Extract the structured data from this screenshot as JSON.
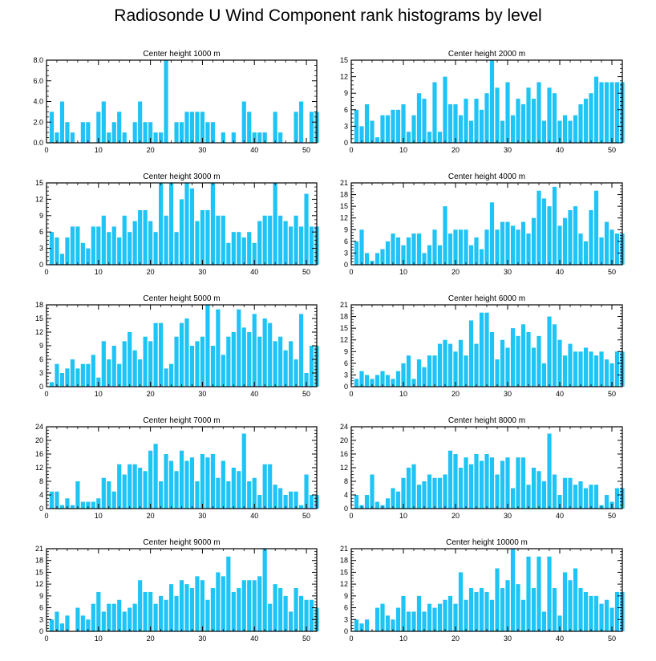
{
  "title": "Radiosonde U Wind Component rank histograms by level",
  "bar_color": "#1ec4f5",
  "chart_data": [
    {
      "type": "bar",
      "title": "Center height 1000 m",
      "xlim": [
        0,
        52
      ],
      "ylim": [
        0,
        8
      ],
      "yticks": [
        0,
        2,
        4,
        6,
        8
      ],
      "ytick_labels": [
        "0.0",
        "2.0",
        "4.0",
        "6.0",
        "8.0"
      ],
      "xticks": [
        0,
        10,
        20,
        30,
        40,
        50
      ],
      "values": [
        0,
        3,
        1,
        4,
        2,
        1,
        0,
        2,
        2,
        0,
        3,
        4,
        1,
        2,
        3,
        1,
        0,
        2,
        4,
        2,
        2,
        1,
        1,
        8,
        0,
        2,
        2,
        3,
        3,
        3,
        3,
        2,
        2,
        0,
        1,
        0,
        1,
        0,
        4,
        3,
        1,
        1,
        1,
        0,
        3,
        1,
        0,
        0,
        3,
        4,
        0,
        3,
        3
      ]
    },
    {
      "type": "bar",
      "title": "Center height 2000 m",
      "xlim": [
        0,
        52
      ],
      "ylim": [
        0,
        15
      ],
      "yticks": [
        0,
        3,
        6,
        9,
        12,
        15
      ],
      "ytick_labels": [
        "0",
        "3",
        "6",
        "9",
        "12",
        "15"
      ],
      "xticks": [
        0,
        10,
        20,
        30,
        40,
        50
      ],
      "values": [
        0,
        6,
        3,
        7,
        4,
        1,
        5,
        5,
        6,
        6,
        7,
        2,
        5,
        9,
        8,
        2,
        11,
        2,
        12,
        7,
        7,
        5,
        8,
        4,
        8,
        6,
        9,
        15,
        10,
        4,
        11,
        5,
        8,
        7,
        10,
        8,
        11,
        4,
        10,
        9,
        4,
        5,
        4,
        5,
        7,
        8,
        9,
        12,
        11,
        11,
        11,
        11,
        11
      ]
    },
    {
      "type": "bar",
      "title": "Center height 3000 m",
      "xlim": [
        0,
        52
      ],
      "ylim": [
        0,
        15
      ],
      "yticks": [
        0,
        3,
        6,
        9,
        12,
        15
      ],
      "ytick_labels": [
        "0",
        "3",
        "6",
        "9",
        "12",
        "15"
      ],
      "xticks": [
        0,
        10,
        20,
        30,
        40,
        50
      ],
      "values": [
        0,
        6,
        5,
        2,
        5,
        7,
        7,
        4,
        3,
        7,
        7,
        9,
        6,
        7,
        5,
        9,
        6,
        8,
        10,
        10,
        8,
        6,
        15,
        9,
        15,
        6,
        12,
        15,
        14,
        8,
        10,
        10,
        15,
        9,
        9,
        4,
        6,
        6,
        5,
        6,
        4,
        8,
        9,
        9,
        15,
        9,
        8,
        7,
        9,
        7,
        13,
        7,
        7
      ]
    },
    {
      "type": "bar",
      "title": "Center height 4000 m",
      "xlim": [
        0,
        52
      ],
      "ylim": [
        0,
        21
      ],
      "yticks": [
        0,
        3,
        6,
        9,
        12,
        15,
        18,
        21
      ],
      "ytick_labels": [
        "0",
        "3",
        "6",
        "9",
        "12",
        "15",
        "18",
        "21"
      ],
      "xticks": [
        0,
        10,
        20,
        30,
        40,
        50
      ],
      "values": [
        0,
        6,
        9,
        3,
        1,
        3,
        4,
        6,
        8,
        7,
        5,
        7,
        8,
        8,
        3,
        5,
        9,
        5,
        15,
        8,
        9,
        9,
        9,
        5,
        7,
        4,
        9,
        16,
        9,
        11,
        11,
        10,
        9,
        11,
        8,
        12,
        19,
        17,
        15,
        20,
        10,
        12,
        14,
        15,
        8,
        6,
        14,
        19,
        7,
        11,
        9,
        8,
        8
      ]
    },
    {
      "type": "bar",
      "title": "Center height 5000 m",
      "xlim": [
        0,
        52
      ],
      "ylim": [
        0,
        18
      ],
      "yticks": [
        0,
        3,
        6,
        9,
        12,
        15,
        18
      ],
      "ytick_labels": [
        "0",
        "3",
        "6",
        "9",
        "12",
        "15",
        "18"
      ],
      "xticks": [
        0,
        10,
        20,
        30,
        40,
        50
      ],
      "values": [
        0,
        1,
        5,
        3,
        4,
        6,
        4,
        5,
        5,
        7,
        2,
        10,
        6,
        9,
        5,
        10,
        12,
        8,
        6,
        11,
        10,
        14,
        14,
        4,
        5,
        11,
        14,
        15,
        9,
        10,
        11,
        18,
        9,
        17,
        7,
        11,
        12,
        17,
        13,
        12,
        16,
        11,
        15,
        14,
        10,
        11,
        8,
        10,
        6,
        16,
        3,
        9,
        9
      ]
    },
    {
      "type": "bar",
      "title": "Center height 6000 m",
      "xlim": [
        0,
        52
      ],
      "ylim": [
        0,
        21
      ],
      "yticks": [
        0,
        3,
        6,
        9,
        12,
        15,
        18,
        21
      ],
      "ytick_labels": [
        "0",
        "3",
        "6",
        "9",
        "12",
        "15",
        "18",
        "21"
      ],
      "xticks": [
        0,
        10,
        20,
        30,
        40,
        50
      ],
      "values": [
        0,
        2,
        4,
        3,
        2,
        3,
        4,
        3,
        2,
        4,
        6,
        8,
        2,
        7,
        5,
        8,
        8,
        11,
        12,
        11,
        9,
        12,
        8,
        17,
        11,
        19,
        19,
        14,
        7,
        12,
        10,
        15,
        13,
        16,
        14,
        10,
        13,
        6,
        18,
        16,
        12,
        8,
        11,
        9,
        9,
        10,
        9,
        8,
        9,
        7,
        6,
        9,
        9
      ]
    },
    {
      "type": "bar",
      "title": "Center height 7000 m",
      "xlim": [
        0,
        52
      ],
      "ylim": [
        0,
        24
      ],
      "yticks": [
        0,
        4,
        8,
        12,
        16,
        20,
        24
      ],
      "ytick_labels": [
        "0",
        "4",
        "8",
        "12",
        "16",
        "20",
        "24"
      ],
      "xticks": [
        0,
        10,
        20,
        30,
        40,
        50
      ],
      "values": [
        0,
        5,
        5,
        1,
        3,
        1,
        8,
        2,
        2,
        2,
        3,
        9,
        8,
        5,
        13,
        10,
        13,
        13,
        12,
        11,
        17,
        19,
        8,
        16,
        14,
        11,
        17,
        14,
        15,
        8,
        16,
        15,
        16,
        9,
        14,
        8,
        12,
        11,
        22,
        8,
        9,
        4,
        13,
        13,
        7,
        6,
        4,
        5,
        5,
        1,
        10,
        4,
        4
      ]
    },
    {
      "type": "bar",
      "title": "Center height 8000 m",
      "xlim": [
        0,
        52
      ],
      "ylim": [
        0,
        24
      ],
      "yticks": [
        0,
        4,
        8,
        12,
        16,
        20,
        24
      ],
      "ytick_labels": [
        "0",
        "4",
        "8",
        "12",
        "16",
        "20",
        "24"
      ],
      "xticks": [
        0,
        10,
        20,
        30,
        40,
        50
      ],
      "values": [
        0,
        4,
        1,
        4,
        10,
        2,
        1,
        3,
        6,
        5,
        9,
        12,
        13,
        7,
        8,
        10,
        9,
        9,
        10,
        17,
        16,
        12,
        15,
        13,
        16,
        14,
        16,
        15,
        10,
        14,
        15,
        6,
        15,
        15,
        7,
        12,
        11,
        8,
        22,
        10,
        4,
        9,
        9,
        7,
        8,
        6,
        7,
        7,
        1,
        4,
        2,
        6,
        6
      ]
    },
    {
      "type": "bar",
      "title": "Center height 9000 m",
      "xlim": [
        0,
        52
      ],
      "ylim": [
        0,
        21
      ],
      "yticks": [
        0,
        3,
        6,
        9,
        12,
        15,
        18,
        21
      ],
      "ytick_labels": [
        "0",
        "3",
        "6",
        "9",
        "12",
        "15",
        "18",
        "21"
      ],
      "xticks": [
        0,
        10,
        20,
        30,
        40,
        50
      ],
      "values": [
        0,
        3,
        5,
        2,
        4,
        0,
        6,
        4,
        3,
        7,
        10,
        5,
        7,
        7,
        8,
        5,
        6,
        7,
        13,
        10,
        10,
        7,
        9,
        8,
        12,
        9,
        13,
        12,
        11,
        14,
        13,
        8,
        11,
        15,
        14,
        19,
        10,
        11,
        13,
        13,
        13,
        14,
        21,
        7,
        12,
        11,
        9,
        5,
        11,
        9,
        8,
        8,
        6
      ]
    },
    {
      "type": "bar",
      "title": "Center height 10000 m",
      "xlim": [
        0,
        52
      ],
      "ylim": [
        0,
        21
      ],
      "yticks": [
        0,
        3,
        6,
        9,
        12,
        15,
        18,
        21
      ],
      "ytick_labels": [
        "0",
        "3",
        "6",
        "9",
        "12",
        "15",
        "18",
        "21"
      ],
      "xticks": [
        0,
        10,
        20,
        30,
        40,
        50
      ],
      "values": [
        0,
        3,
        2,
        3,
        0,
        6,
        7,
        4,
        3,
        6,
        9,
        5,
        5,
        9,
        5,
        7,
        6,
        7,
        8,
        9,
        7,
        15,
        8,
        11,
        10,
        11,
        10,
        8,
        16,
        11,
        13,
        21,
        12,
        8,
        19,
        11,
        19,
        5,
        19,
        11,
        4,
        15,
        13,
        16,
        11,
        10,
        9,
        9,
        7,
        8,
        6,
        10,
        10
      ]
    }
  ]
}
